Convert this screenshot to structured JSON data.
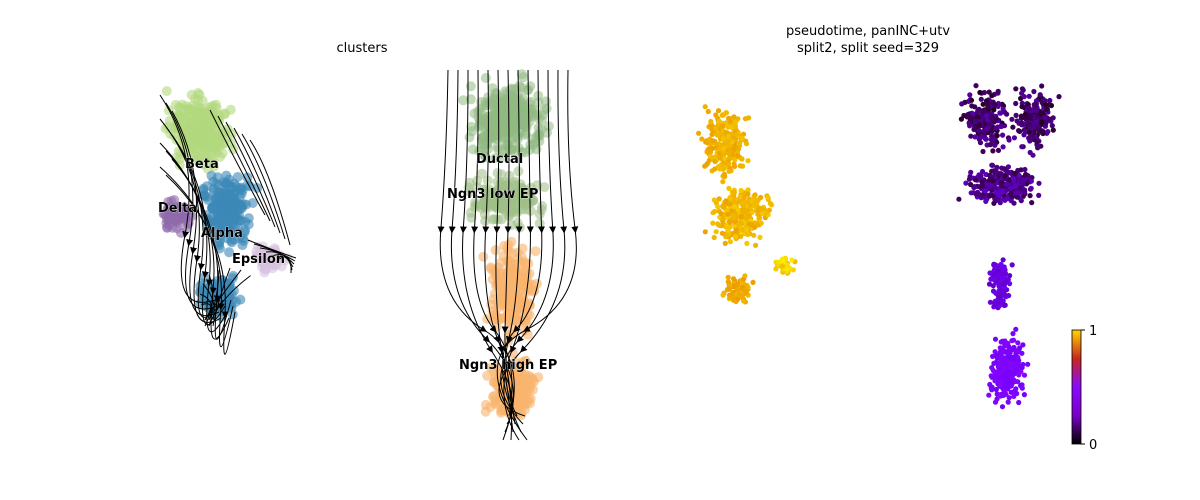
{
  "chart_data": [
    {
      "type": "scatter",
      "subtype": "embedding-with-velocity-streamlines",
      "title": "clusters",
      "clusters": [
        {
          "name": "Beta",
          "color": "#b2d87f"
        },
        {
          "name": "Delta",
          "color": "#8f6aab"
        },
        {
          "name": "Alpha",
          "color": "#3c89b8"
        },
        {
          "name": "Epsilon",
          "color": "#d7c3df"
        },
        {
          "name": "Ductal",
          "color": "#8fb982"
        },
        {
          "name": "Ngn3 low EP",
          "color": "#9fc087"
        },
        {
          "name": "Ngn3 high EP",
          "color": "#f9b46e"
        }
      ],
      "streamlines": true,
      "axes": "off"
    },
    {
      "type": "scatter",
      "subtype": "embedding-continuous-color",
      "title_lines": [
        "pseudotime, panINC+utv",
        "split2, split seed=329"
      ],
      "colormap": "gnuplot",
      "colorbar": {
        "min": 0,
        "max": 1,
        "ticks": [
          "0",
          "1"
        ]
      },
      "axes": "off"
    }
  ]
}
